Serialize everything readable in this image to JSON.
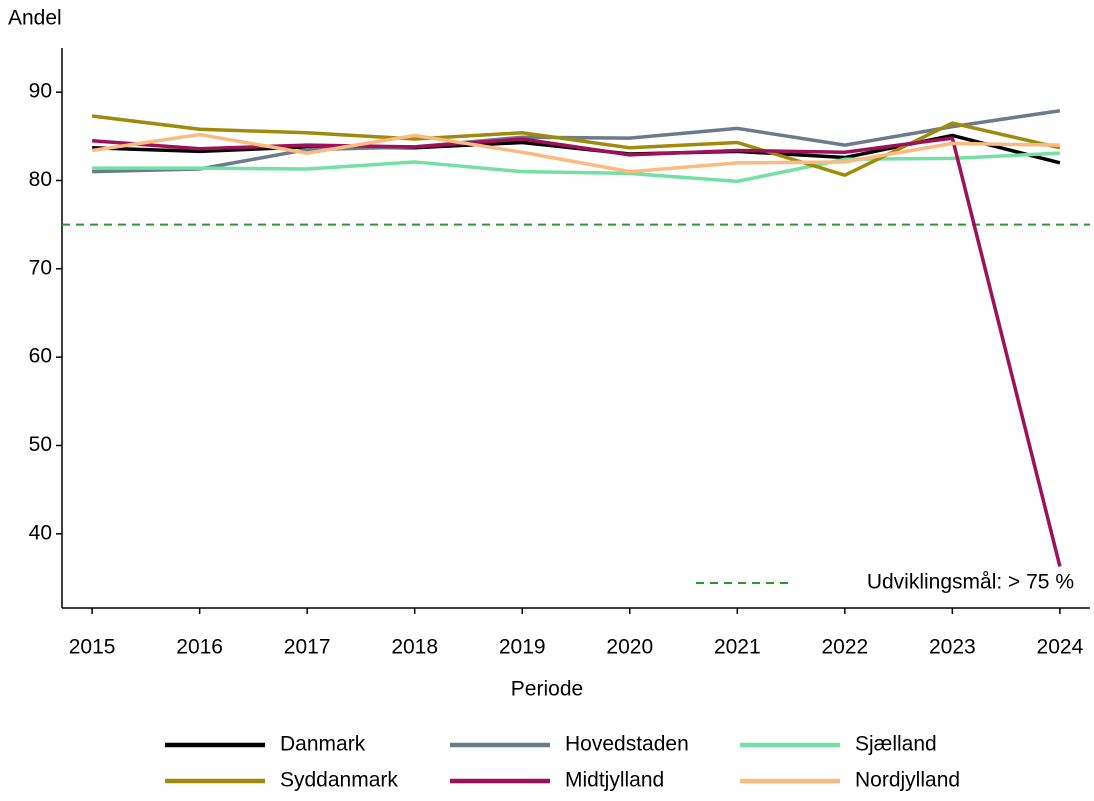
{
  "chart_data": {
    "type": "line",
    "y_label": "Andel",
    "x_label": "Periode",
    "x": [
      2015,
      2016,
      2017,
      2018,
      2019,
      2020,
      2021,
      2022,
      2023,
      2024
    ],
    "series": [
      {
        "name": "Danmark",
        "color": "#000000",
        "values": [
          83.7,
          83.3,
          83.8,
          83.7,
          84.3,
          83.0,
          83.3,
          82.6,
          85.1,
          82.0
        ]
      },
      {
        "name": "Hovedstaden",
        "color": "#6b7b8c",
        "values": [
          81.0,
          81.3,
          83.5,
          83.8,
          84.9,
          84.8,
          85.9,
          84.0,
          86.1,
          87.9
        ]
      },
      {
        "name": "Sjælland",
        "color": "#74e0a4",
        "values": [
          81.4,
          81.4,
          81.3,
          82.1,
          81.0,
          80.8,
          79.9,
          82.4,
          82.5,
          83.1
        ]
      },
      {
        "name": "Syddanmark",
        "color": "#a08a0c",
        "values": [
          87.3,
          85.8,
          85.4,
          84.7,
          85.4,
          83.7,
          84.3,
          80.6,
          86.5,
          83.7
        ]
      },
      {
        "name": "Midtjylland",
        "color": "#a0105a",
        "values": [
          84.5,
          83.6,
          84.0,
          83.8,
          84.7,
          82.9,
          83.4,
          83.2,
          84.8,
          36.3
        ]
      },
      {
        "name": "Nordjylland",
        "color": "#fbbb80",
        "values": [
          83.4,
          85.2,
          83.1,
          85.1,
          83.2,
          81.0,
          82.0,
          82.1,
          84.2,
          84.0
        ]
      }
    ],
    "reference_line": {
      "value": 75,
      "label": "Udviklingsmål: > 75 %",
      "color": "#2a9a2a"
    },
    "xlim": [
      2014.72,
      2024.28
    ],
    "xticks": [
      2015,
      2016,
      2017,
      2018,
      2019,
      2020,
      2021,
      2022,
      2023,
      2024
    ],
    "ylim": [
      31.6,
      95
    ],
    "yticks": [
      40,
      50,
      60,
      70,
      80,
      90
    ],
    "grid": false
  }
}
